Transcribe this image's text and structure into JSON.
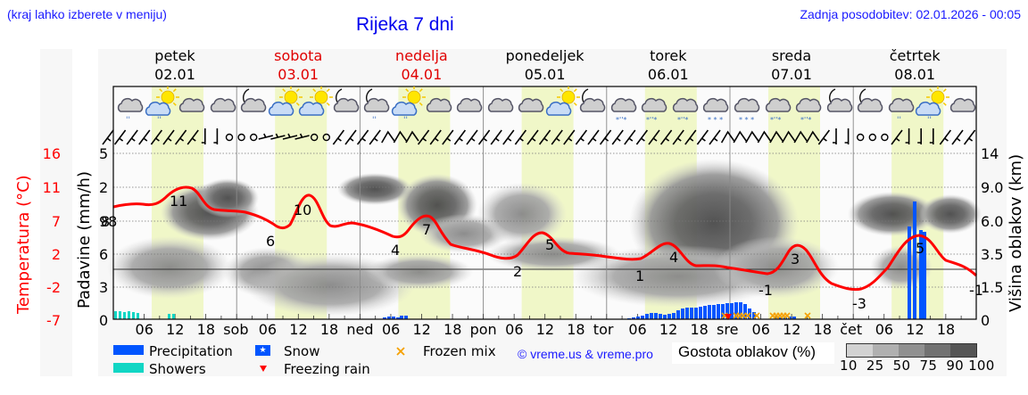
{
  "header": {
    "menu_hint": "(kraj lahko izberete v meniju)",
    "title": "Rijeka 7 dni",
    "last_update": "Zadnja posodobitev: 02.01.2026 - 00:05"
  },
  "days": [
    {
      "name": "petek",
      "date": "02.01",
      "weekend": false
    },
    {
      "name": "sobota",
      "date": "03.01",
      "weekend": true
    },
    {
      "name": "nedelja",
      "date": "04.01",
      "weekend": true
    },
    {
      "name": "ponedeljek",
      "date": "05.01",
      "weekend": false
    },
    {
      "name": "torek",
      "date": "06.01",
      "weekend": false
    },
    {
      "name": "sreda",
      "date": "07.01",
      "weekend": false
    },
    {
      "name": "četrtek",
      "date": "08.01",
      "weekend": false
    }
  ],
  "weather_icons": [
    "cloud-rain",
    "sun-cloud-rain",
    "cloud",
    "cloud",
    "moon-cloud",
    "sun-cloud",
    "sun-cloud",
    "moon-cloud",
    "moon-cloud-rain",
    "sun-cloud-rain",
    "cloud",
    "cloud",
    "cloud",
    "cloud",
    "sun-cloud",
    "moon-cloud",
    "cloud-sleet",
    "cloud-sleet",
    "cloud-sleet",
    "cloud-snow",
    "cloud-snow",
    "cloud-sleet",
    "cloud-sleet",
    "moon-cloud",
    "moon-cloud",
    "cloud-rain",
    "sun-cloud-rain",
    "cloud"
  ],
  "axes": {
    "temp_title": "Temperatura (°C)",
    "precip_title": "Padavine (mm/h)",
    "cloud_title": "Višina oblakov (km)",
    "temp_ticks": [
      "16",
      "11",
      "7",
      "2",
      "-2",
      "-7"
    ],
    "precip_ticks": [
      "5",
      "2",
      "98",
      "6",
      "3",
      "0"
    ],
    "cloud_ticks": [
      "14",
      "9.0",
      "6.0",
      "3.5",
      "1.5",
      "0"
    ]
  },
  "x_ticks": [
    "06",
    "12",
    "18",
    "sob",
    "06",
    "12",
    "18",
    "ned",
    "06",
    "12",
    "18",
    "pon",
    "06",
    "12",
    "18",
    "tor",
    "06",
    "12",
    "18",
    "sre",
    "06",
    "12",
    "18",
    "čet",
    "06",
    "12",
    "18"
  ],
  "legend": {
    "precipitation": "Precipitation",
    "showers": "Showers",
    "snow": "Snow",
    "freezing_rain": "Freezing rain",
    "frozen_mix": "Frozen mix",
    "copyright": "© vreme.us & vreme.pro",
    "cloud_density_title": "Gostota oblakov (%)",
    "cloud_density_ticks": [
      "10",
      "25",
      "50",
      "75",
      "90",
      "100"
    ]
  },
  "colors": {
    "temperature": "#ff0000",
    "precipitation": "#0055ff",
    "showers": "#11d6c4",
    "frozen_mix": "#f5a000",
    "freezing_rain": "#ff0000",
    "daylight": "#f0f7c8",
    "weekend_day": "#e00000",
    "link": "#1a1aff"
  },
  "chart_data": {
    "type": "line",
    "title": "Rijeka 7 dni",
    "xlabel": "",
    "ylabel": "Temperatura (°C)",
    "ylim": [
      -7,
      16
    ],
    "categories": [
      "petek 02.01",
      "sobota 03.01",
      "nedelja 04.01",
      "ponedeljek 05.01",
      "torek 06.01",
      "sreda 07.01",
      "četrtek 08.01"
    ],
    "series": [
      {
        "name": "Temperature max/min labels",
        "points": [
          {
            "x": "02.01 ~00",
            "label": "8",
            "note": "axis-edge label"
          },
          {
            "x": "02.01 ~10",
            "value": 11
          },
          {
            "x": "03.01 ~03",
            "value": 6
          },
          {
            "x": "03.01 ~13",
            "value": 10
          },
          {
            "x": "04.01 ~03",
            "value": 4
          },
          {
            "x": "04.01 ~13",
            "value": 7
          },
          {
            "x": "05.01 ~03",
            "value": 2
          },
          {
            "x": "05.01 ~12",
            "value": 5
          },
          {
            "x": "06.01 ~02",
            "value": 1
          },
          {
            "x": "06.01 ~13",
            "value": 4
          },
          {
            "x": "07.01 ~07",
            "value": -1
          },
          {
            "x": "07.01 ~14",
            "value": 3
          },
          {
            "x": "08.01 ~01",
            "value": -3
          },
          {
            "x": "08.01 ~13",
            "value": 5
          },
          {
            "x": "08.01 ~24",
            "value": -1
          }
        ]
      },
      {
        "name": "Precipitation (mm/h)",
        "axis": "Padavine (mm/h)",
        "description": "Light precipitation 04.01 early morning; steady precipitation 06.01 morning through 07.01 ~10 (bars up to ~0.9 mm/h); peak ~1.8 mm/h at 08.01 ~13"
      },
      {
        "name": "Showers",
        "description": "Light showers 02.01 00-06 and around 12"
      },
      {
        "name": "Frozen mix / Freezing rain / Snow",
        "description": "Snow markers 06.01 evening; frozen mix and freezing rain 07.01 00-15"
      }
    ],
    "secondary_axes": {
      "precip_ticks": [
        "0",
        "3",
        "6",
        "98",
        "2",
        "5"
      ],
      "cloud_height_km": [
        "0",
        "1.5",
        "3.5",
        "6.0",
        "9.0",
        "14"
      ]
    },
    "cloud_density_legend": [
      "10",
      "25",
      "50",
      "75",
      "90",
      "100"
    ],
    "grid": true,
    "legend_position": "bottom"
  }
}
